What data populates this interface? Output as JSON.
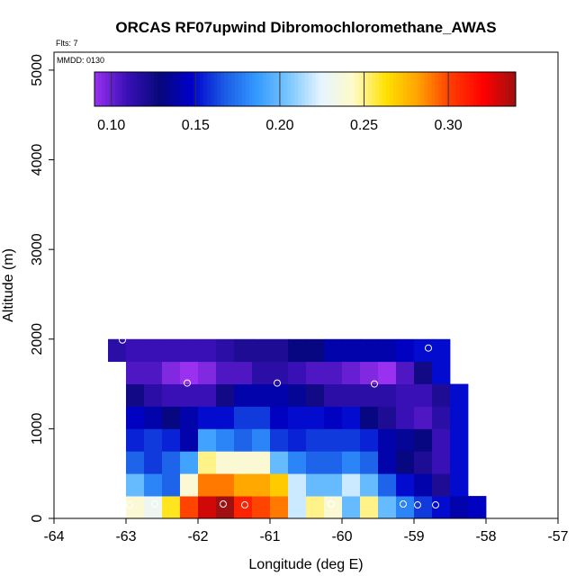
{
  "chart_data": {
    "type": "heatmap",
    "title": "ORCAS RF07upwind Dibromochloromethane_AWAS",
    "flights_label": "Flts: 7",
    "date_label": "MMDD: 0130",
    "xlabel": "Longitude (deg E)",
    "ylabel": "Altitude (m)",
    "xlim": [
      -64,
      -57
    ],
    "ylim": [
      0,
      5200
    ],
    "xticks": [
      -64,
      -63,
      -62,
      -61,
      -60,
      -59,
      -58,
      -57
    ],
    "yticks": [
      0,
      1000,
      2000,
      3000,
      4000,
      5000
    ],
    "cell_size": {
      "lon": 0.25,
      "alt": 250
    },
    "colorbar": {
      "vmin": 0.09,
      "vmax": 0.34,
      "ticks": [
        0.1,
        0.15,
        0.2,
        0.25,
        0.3
      ],
      "tick_labels": [
        "0.10",
        "0.15",
        "0.20",
        "0.25",
        "0.30"
      ],
      "colors": [
        "#9a30f0",
        "#3a10b8",
        "#08087a",
        "#0000cc",
        "#1a5ae6",
        "#3399ff",
        "#7ac8ff",
        "#e6f5ff",
        "#fffac8",
        "#ffe100",
        "#ffa000",
        "#ff3c00",
        "#ff0000",
        "#a01010"
      ]
    },
    "grid_origin": {
      "lon": -63.25,
      "alt": 0
    },
    "rows": [
      {
        "alt": 0,
        "start": 0,
        "values": [
          null,
          0.24,
          0.23,
          0.26,
          0.3,
          0.33,
          0.34,
          0.31,
          0.3,
          0.29,
          0.22,
          0.25,
          0.24,
          0.2,
          0.25,
          0.2,
          0.18,
          0.16,
          0.15,
          0.14,
          0.145
        ]
      },
      {
        "alt": 250,
        "start": 0,
        "values": [
          null,
          0.2,
          0.18,
          0.17,
          0.24,
          0.29,
          0.29,
          0.28,
          0.28,
          0.27,
          0.22,
          0.2,
          0.2,
          0.22,
          0.2,
          0.17,
          0.15,
          0.14,
          0.12,
          0.15
        ]
      },
      {
        "alt": 500,
        "start": 0,
        "values": [
          null,
          0.17,
          0.16,
          0.17,
          0.19,
          0.25,
          0.24,
          0.24,
          0.24,
          0.2,
          0.18,
          0.17,
          0.17,
          0.18,
          0.17,
          0.14,
          0.13,
          0.12,
          0.11,
          0.15
        ]
      },
      {
        "alt": 750,
        "start": 0,
        "values": [
          null,
          0.155,
          0.16,
          0.155,
          0.14,
          0.19,
          0.18,
          0.17,
          0.18,
          0.16,
          0.155,
          0.16,
          0.16,
          0.16,
          0.155,
          0.14,
          0.135,
          0.13,
          0.11,
          0.15
        ]
      },
      {
        "alt": 1000,
        "start": 0,
        "values": [
          null,
          0.145,
          0.14,
          0.13,
          0.14,
          0.15,
          0.15,
          0.16,
          0.16,
          0.145,
          0.15,
          0.15,
          0.145,
          0.15,
          0.13,
          0.12,
          0.11,
          0.105,
          0.115,
          0.15
        ]
      },
      {
        "alt": 1250,
        "start": 0,
        "values": [
          null,
          0.125,
          0.115,
          0.11,
          0.11,
          0.11,
          0.125,
          0.14,
          0.14,
          0.14,
          0.135,
          0.125,
          0.115,
          0.115,
          0.115,
          0.115,
          0.11,
          0.11,
          0.12,
          0.15
        ]
      },
      {
        "alt": 1500,
        "start": 0,
        "values": [
          null,
          0.105,
          0.105,
          0.095,
          0.09,
          0.095,
          0.105,
          0.105,
          0.115,
          0.115,
          0.11,
          0.105,
          0.105,
          0.1,
          0.095,
          0.09,
          0.105,
          0.125,
          0.15
        ]
      },
      {
        "alt": 1750,
        "start": 0,
        "values": [
          0.115,
          0.11,
          0.11,
          0.11,
          0.11,
          0.11,
          0.115,
          0.12,
          0.12,
          0.12,
          0.13,
          0.13,
          0.14,
          0.14,
          0.14,
          0.14,
          0.145,
          0.15,
          0.15
        ]
      }
    ],
    "samples": [
      {
        "lon": -62.95,
        "alt": 150
      },
      {
        "lon": -62.6,
        "alt": 160
      },
      {
        "lon": -61.65,
        "alt": 160
      },
      {
        "lon": -61.35,
        "alt": 150
      },
      {
        "lon": -60.15,
        "alt": 160
      },
      {
        "lon": -59.15,
        "alt": 160
      },
      {
        "lon": -58.95,
        "alt": 150
      },
      {
        "lon": -58.7,
        "alt": 150
      },
      {
        "lon": -63.05,
        "alt": 1990
      },
      {
        "lon": -62.15,
        "alt": 1510
      },
      {
        "lon": -60.9,
        "alt": 1510
      },
      {
        "lon": -59.55,
        "alt": 1500
      },
      {
        "lon": -58.8,
        "alt": 1900
      }
    ]
  }
}
